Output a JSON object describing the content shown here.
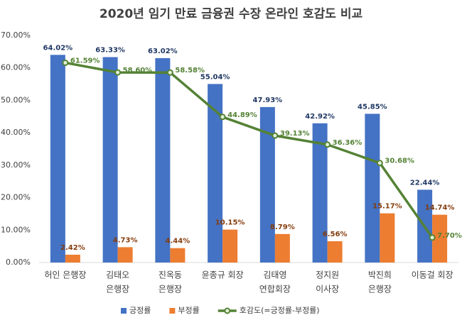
{
  "chart_data": {
    "type": "bar",
    "title": "2020년 임기 만료 금융권 수장 온라인 호감도 비교",
    "categories": [
      [
        "허인 은행장"
      ],
      [
        "김태오",
        "은행장"
      ],
      [
        "진옥동",
        "은행장"
      ],
      [
        "윤종규 회장"
      ],
      [
        "김태영",
        "연합회장"
      ],
      [
        "정지원",
        "이사장"
      ],
      [
        "박진희",
        "은행장"
      ],
      [
        "이동걸 회장"
      ]
    ],
    "series": [
      {
        "name": "긍정률",
        "type": "bar",
        "color": "#4472c4",
        "label_color": "#203864",
        "values": [
          64.02,
          63.33,
          63.02,
          55.04,
          47.93,
          42.92,
          45.85,
          22.44
        ],
        "value_labels": [
          "64.02%",
          "63.33%",
          "63.02%",
          "55.04%",
          "47.93%",
          "42.92%",
          "45.85%",
          "22.44%"
        ]
      },
      {
        "name": "부정률",
        "type": "bar",
        "color": "#ed7d31",
        "label_color": "#843c0c",
        "values": [
          2.42,
          4.73,
          4.44,
          10.15,
          8.79,
          6.56,
          15.17,
          14.74
        ],
        "value_labels": [
          "2.42%",
          "4.73%",
          "4.44%",
          "10.15%",
          "8.79%",
          "6.56%",
          "15.17%",
          "14.74%"
        ]
      },
      {
        "name": "호감도(=긍정률-부정률)",
        "type": "line",
        "color": "#548235",
        "label_color": "#548235",
        "values": [
          61.59,
          58.6,
          58.58,
          44.89,
          39.13,
          36.36,
          30.68,
          7.7
        ],
        "value_labels": [
          "61.59%",
          "58.60%",
          "58.58%",
          "44.89%",
          "39.13%",
          "36.36%",
          "30.68%",
          "7.70%"
        ]
      }
    ],
    "ylim": [
      0,
      70
    ],
    "yticks": [
      {
        "value": 0,
        "label": "0.00%"
      },
      {
        "value": 10,
        "label": "10.00%"
      },
      {
        "value": 20,
        "label": "20.00%"
      },
      {
        "value": 30,
        "label": "30.00%"
      },
      {
        "value": 40,
        "label": "40.00%"
      },
      {
        "value": 50,
        "label": "50.00%"
      },
      {
        "value": 60,
        "label": "60.00%"
      },
      {
        "value": 70,
        "label": "70.00%"
      }
    ],
    "grid": false
  }
}
